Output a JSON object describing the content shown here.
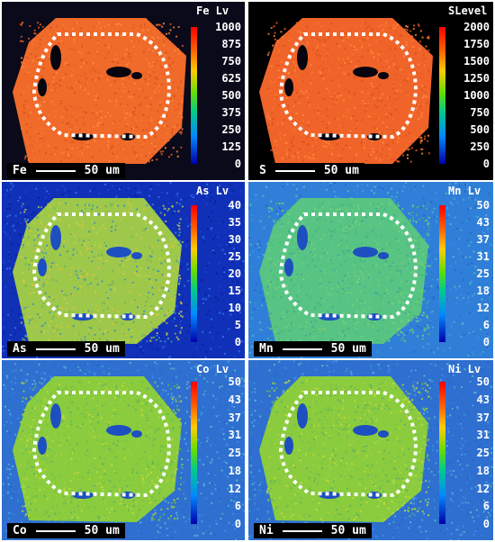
{
  "panels": [
    {
      "element": "Fe",
      "header": "Fe  Lv",
      "scale_text": "50 um",
      "ticks": [
        "1000",
        "875",
        "750",
        "625",
        "500",
        "375",
        "250",
        "125",
        "0"
      ],
      "bg_color": "#0a0a1a",
      "crystal_color": "#f06a2a",
      "theme": "fe"
    },
    {
      "element": "S",
      "header": "SLevel",
      "scale_text": "50 um",
      "ticks": [
        "2000",
        "1750",
        "1500",
        "1250",
        "1000",
        "750",
        "500",
        "250",
        "0"
      ],
      "bg_color": "#000000",
      "crystal_color": "#f0642a",
      "theme": "s"
    },
    {
      "element": "As",
      "header": "As  Lv",
      "scale_text": "50 um",
      "ticks": [
        "40",
        "35",
        "30",
        "25",
        "20",
        "15",
        "10",
        "5",
        "0"
      ],
      "bg_color": "#1030b8",
      "crystal_color": "#9ec84a",
      "theme": "as"
    },
    {
      "element": "Mn",
      "header": "Mn  Lv",
      "scale_text": "50 um",
      "ticks": [
        "50",
        "43",
        "37",
        "31",
        "25",
        "18",
        "12",
        "6",
        "0"
      ],
      "bg_color": "#2f7fd8",
      "crystal_color": "#58c484",
      "theme": "mn"
    },
    {
      "element": "Co",
      "header": "Co  Lv",
      "scale_text": "50 um",
      "ticks": [
        "50",
        "43",
        "37",
        "31",
        "25",
        "18",
        "12",
        "6",
        "0"
      ],
      "bg_color": "#2e6fd0",
      "crystal_color": "#8acc3e",
      "theme": "co"
    },
    {
      "element": "Ni",
      "header": "Ni  Lv",
      "scale_text": "50 um",
      "ticks": [
        "50",
        "43",
        "37",
        "31",
        "25",
        "18",
        "12",
        "6",
        "0"
      ],
      "bg_color": "#2e6fd0",
      "crystal_color": "#8acc3e",
      "theme": "ni"
    }
  ]
}
